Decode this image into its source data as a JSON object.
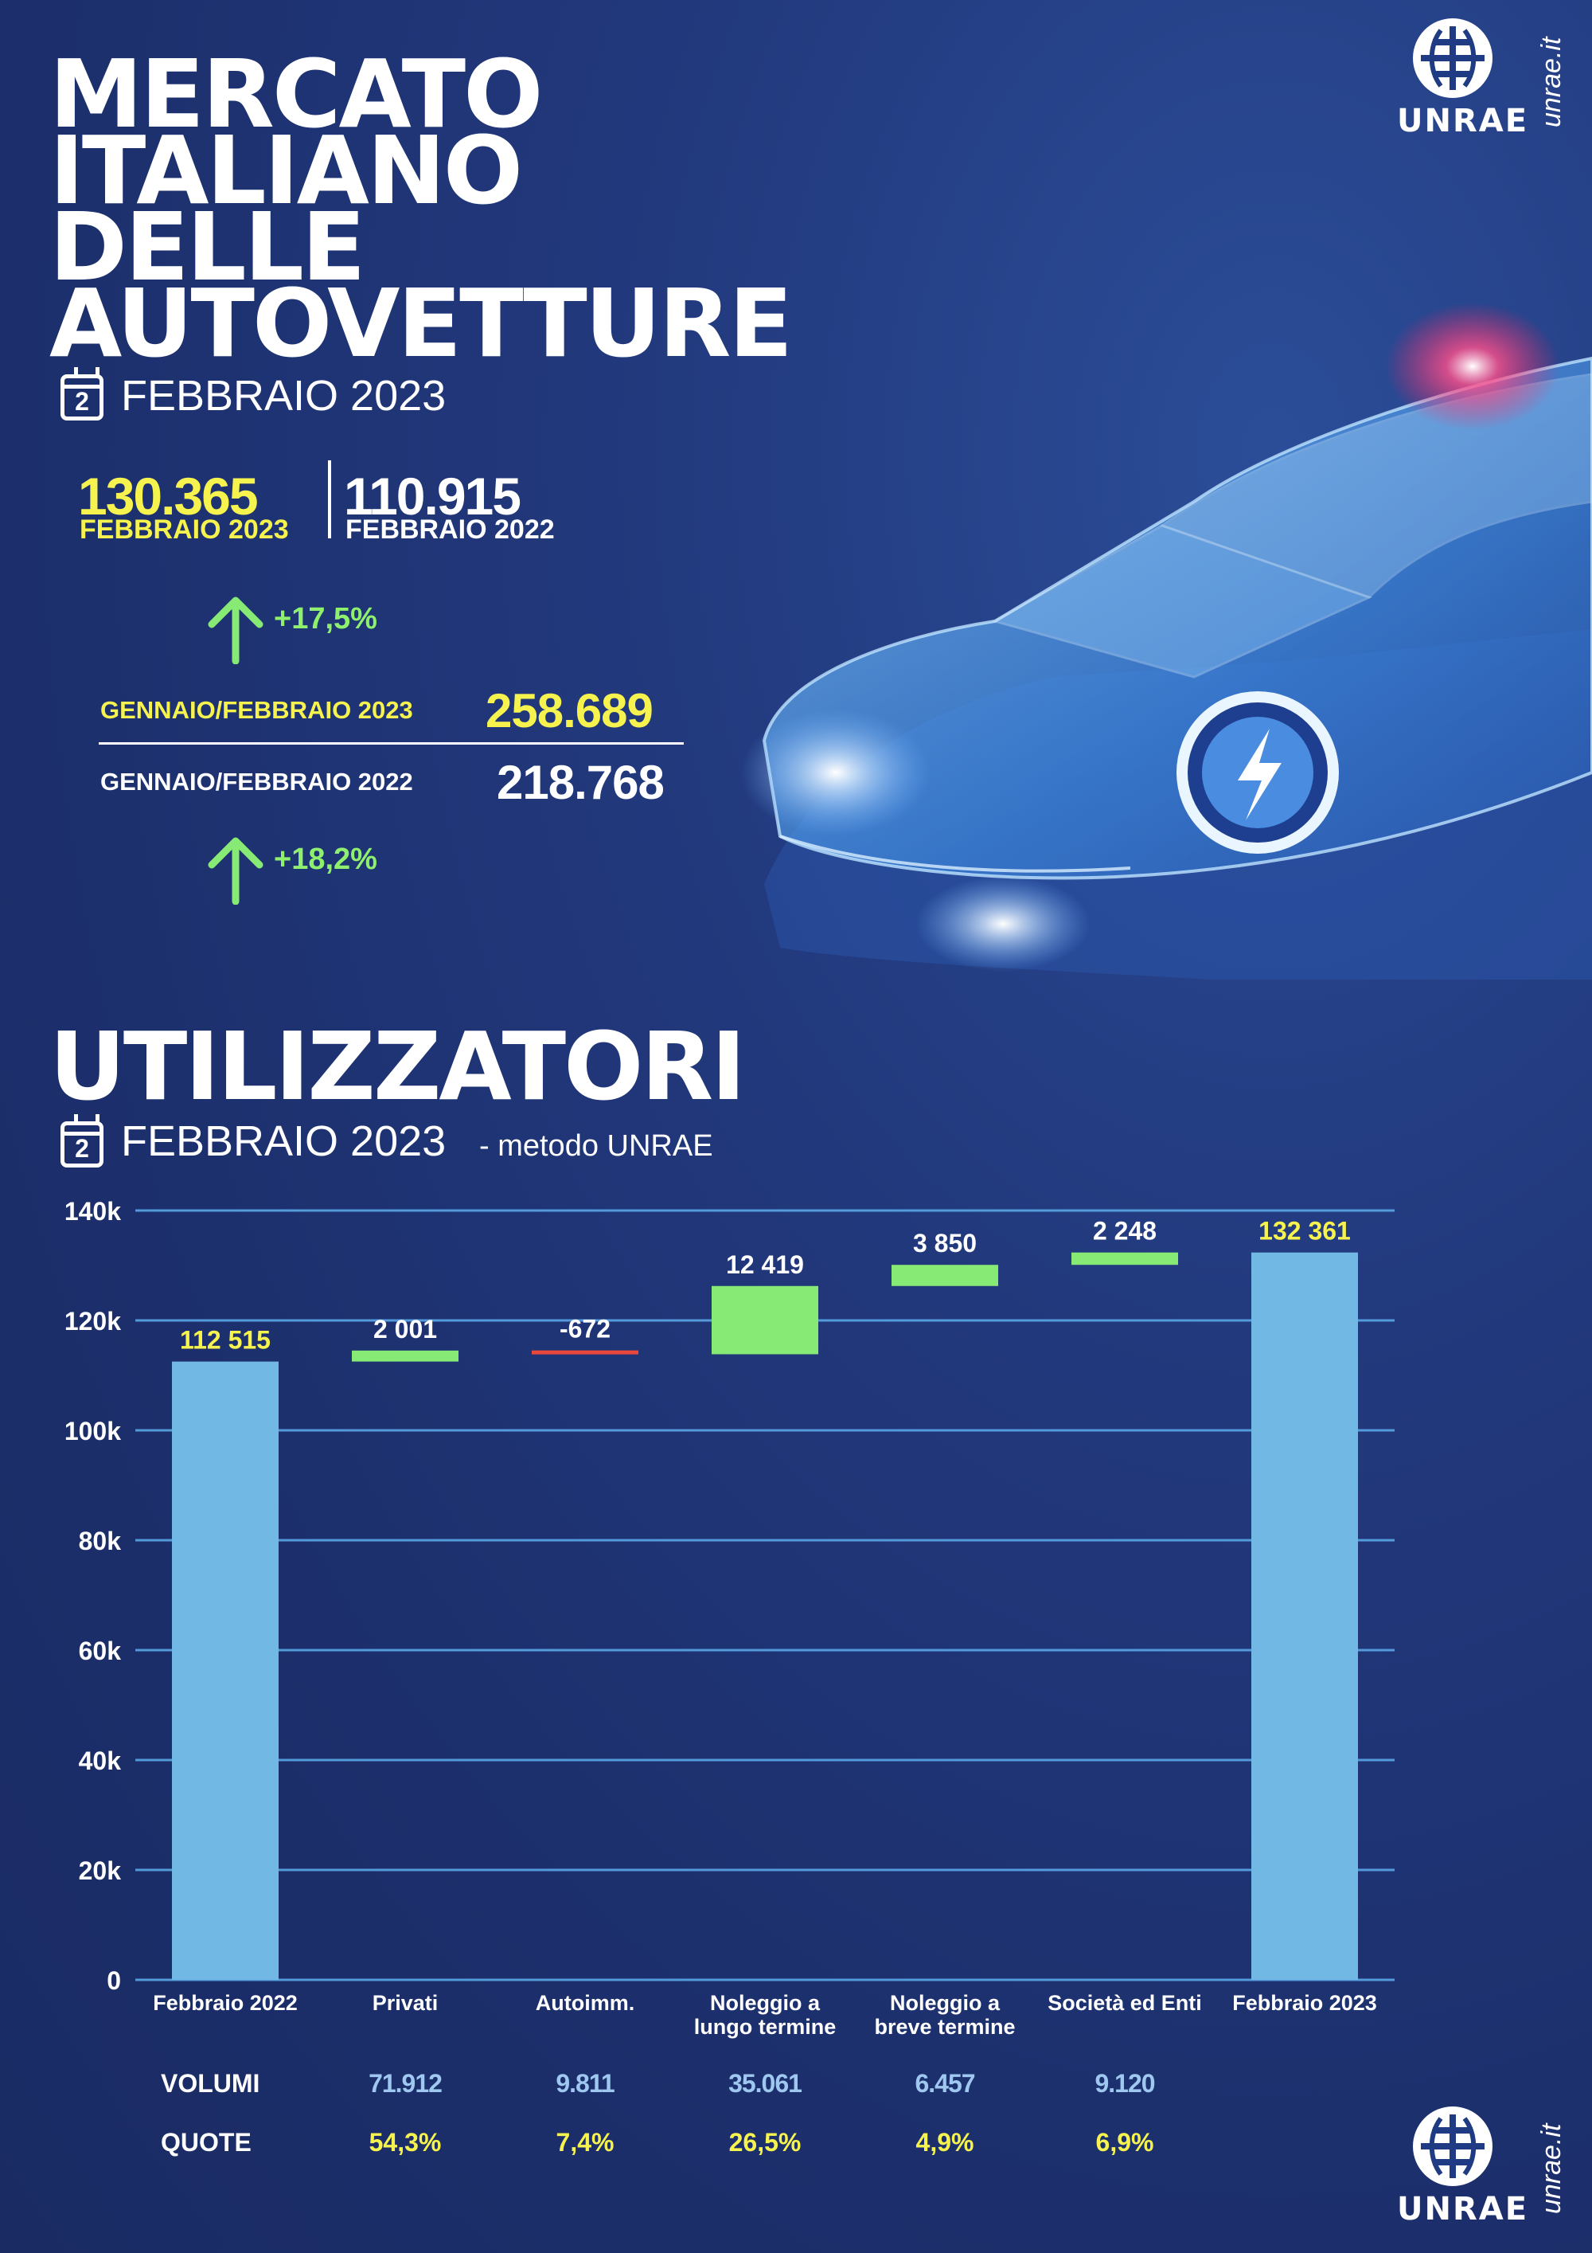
{
  "header": {
    "title_lines": [
      "MERCATO",
      "ITALIANO",
      "DELLE",
      "AUTOVETTURE"
    ],
    "calendar_day": "2",
    "period": "FEBBRAIO 2023",
    "brand": "UNRAE",
    "url": "unrae.it"
  },
  "kpi": {
    "current_value": "130.365",
    "current_label": "FEBBRAIO 2023",
    "previous_value": "110.915",
    "previous_label": "FEBBRAIO 2022",
    "month_change": "+17,5%",
    "ytd_current_label": "GENNAIO/FEBBRAIO 2023",
    "ytd_current_value": "258.689",
    "ytd_previous_label": "GENNAIO/FEBBRAIO 2022",
    "ytd_previous_value": "218.768",
    "ytd_change": "+18,2%"
  },
  "section": {
    "title": "UTILIZZATORI",
    "calendar_day": "2",
    "period": "FEBBRAIO 2023",
    "method": "- metodo UNRAE"
  },
  "colors": {
    "total_bar": "#72b8e4",
    "increase": "#86ea74",
    "decrease": "#e8473c",
    "gridline": "#5aa6e6",
    "label_yellow": "#f7f34e",
    "volume_blue": "#9fc8f0"
  },
  "chart_data": {
    "type": "bar",
    "subtype": "waterfall",
    "categories": [
      "Febbraio 2022",
      "Privati",
      "Autoimm.",
      "Noleggio a lungo termine",
      "Noleggio a breve termine",
      "Società ed Enti",
      "Febbraio 2023"
    ],
    "category_lines": [
      [
        "Febbraio 2022"
      ],
      [
        "Privati"
      ],
      [
        "Autoimm."
      ],
      [
        "Noleggio a",
        "lungo termine"
      ],
      [
        "Noleggio a",
        "breve termine"
      ],
      [
        "Società ed Enti"
      ],
      [
        "Febbraio 2023"
      ]
    ],
    "values": [
      112515,
      2001,
      -672,
      12419,
      3850,
      2248,
      132361
    ],
    "kinds": [
      "total",
      "delta",
      "delta",
      "delta",
      "delta",
      "delta",
      "total"
    ],
    "data_labels": [
      "112 515",
      "2 001",
      "-672",
      "12 419",
      "3 850",
      "2 248",
      "132 361"
    ],
    "ylim": [
      0,
      140000
    ],
    "yticks": [
      0,
      20000,
      40000,
      60000,
      80000,
      100000,
      120000,
      140000
    ],
    "ytick_labels": [
      "0",
      "20k",
      "40k",
      "60k",
      "80k",
      "100k",
      "120k",
      "140k"
    ],
    "grid": true,
    "legend": "none"
  },
  "table": {
    "volumi_label": "VOLUMI",
    "quote_label": "QUOTE",
    "volumi": [
      "71.912",
      "9.811",
      "35.061",
      "6.457",
      "9.120"
    ],
    "quote": [
      "54,3%",
      "7,4%",
      "26,5%",
      "4,9%",
      "6,9%"
    ]
  }
}
